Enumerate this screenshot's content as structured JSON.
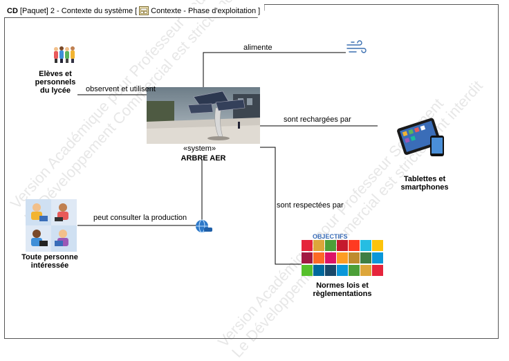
{
  "header": {
    "kind": "CD",
    "package": "[Paquet]",
    "title": "2 - Contexte du système",
    "bracket_open": "[",
    "context_name": "Contexte - Phase d'exploitation",
    "bracket_close": "]"
  },
  "system": {
    "stereotype": "«system»",
    "name": "ARBRE AER"
  },
  "actors": {
    "students": "Elèves et personnels du lycée",
    "tablets": "Tablettes et smartphones",
    "anyone": "Toute personne intéressée",
    "norms": "Normes lois et règlementations"
  },
  "relations": {
    "wind": "alimente",
    "students": "observent et utilisent",
    "tablets": "sont rechargées par",
    "norms": "sont respectées par",
    "anyone": "peut consulter la production"
  },
  "sdg_logo_text": "OBJECTIFS",
  "watermark": {
    "line1": "Version Académique pour Professeur Seulement",
    "line2": "Le Développement Commercial est strictement interdit"
  },
  "colors": {
    "frame": "#555555",
    "line": "#000000"
  }
}
